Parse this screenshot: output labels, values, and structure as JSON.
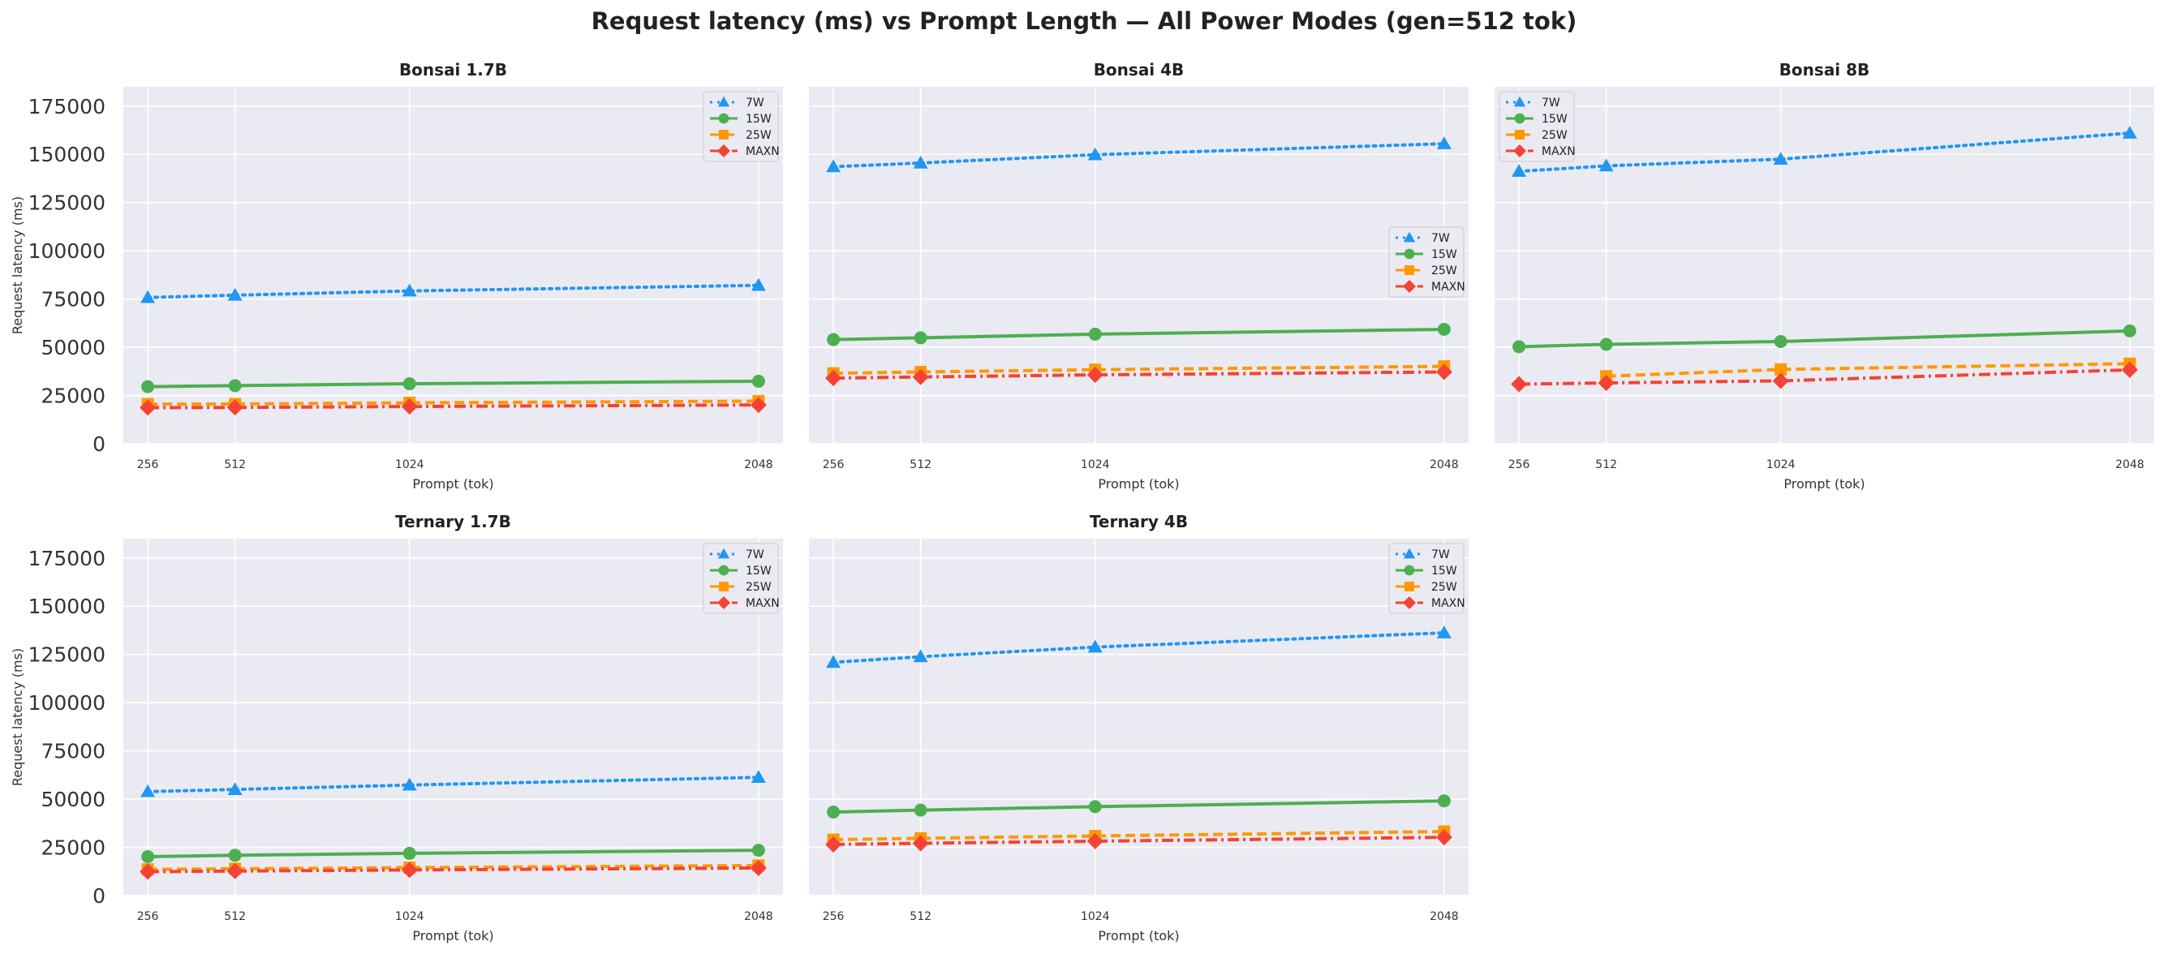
{
  "figure_title": "Request latency (ms) vs Prompt Length — All Power Modes (gen=512 tok)",
  "colors": {
    "7W": "#2196f3",
    "15W": "#4caf50",
    "25W": "#ff9800",
    "MAXN": "#f44336",
    "panel_bg": "#eaeaf2",
    "grid": "#ffffff"
  },
  "series_styles": {
    "7W": {
      "marker": "triangle",
      "dash": "dotted"
    },
    "15W": {
      "marker": "circle",
      "dash": "solid"
    },
    "25W": {
      "marker": "square",
      "dash": "dashed"
    },
    "MAXN": {
      "marker": "diamond",
      "dash": "dashdot"
    }
  },
  "chart_data": [
    {
      "type": "line",
      "title": "Bonsai 1.7B",
      "xlabel": "Prompt (tok)",
      "ylabel": "Request latency (ms)",
      "x": [
        256,
        512,
        1024,
        2048
      ],
      "xticks": [
        "256",
        "512",
        "1024",
        "2048"
      ],
      "yticks": [
        "0",
        "25000",
        "50000",
        "75000",
        "100000",
        "125000",
        "150000",
        "175000"
      ],
      "ylim": [
        0,
        185000
      ],
      "grid": true,
      "legend": "upper right",
      "series": [
        {
          "name": "7W",
          "values": [
            75800,
            77000,
            79200,
            82100
          ]
        },
        {
          "name": "15W",
          "values": [
            29600,
            30100,
            31100,
            32400
          ]
        },
        {
          "name": "25W",
          "values": [
            20500,
            20600,
            21200,
            22100
          ]
        },
        {
          "name": "MAXN",
          "values": [
            18700,
            18800,
            19300,
            20100
          ]
        }
      ]
    },
    {
      "type": "line",
      "title": "Bonsai 4B",
      "xlabel": "Prompt (tok)",
      "ylabel": "",
      "x": [
        256,
        512,
        1024,
        2048
      ],
      "xticks": [
        "256",
        "512",
        "1024",
        "2048"
      ],
      "yticks": [],
      "ylim": [
        0,
        185000
      ],
      "grid": true,
      "legend": "center right",
      "series": [
        {
          "name": "7W",
          "values": [
            143600,
            145500,
            149800,
            155500
          ]
        },
        {
          "name": "15W",
          "values": [
            54000,
            54900,
            56800,
            59300
          ]
        },
        {
          "name": "25W",
          "values": [
            36500,
            37200,
            38400,
            40100
          ]
        },
        {
          "name": "MAXN",
          "values": [
            34000,
            34600,
            35700,
            37200
          ]
        }
      ]
    },
    {
      "type": "line",
      "title": "Bonsai 8B",
      "xlabel": "Prompt (tok)",
      "ylabel": "",
      "x": [
        256,
        512,
        1024,
        2048
      ],
      "xticks": [
        "256",
        "512",
        "1024",
        "2048"
      ],
      "yticks": [],
      "ylim": [
        0,
        185000
      ],
      "grid": true,
      "legend": "upper left",
      "series": [
        {
          "name": "7W",
          "values": [
            141200,
            144000,
            147500,
            161000
          ]
        },
        {
          "name": "15W",
          "values": [
            50300,
            51500,
            53000,
            58500
          ]
        },
        {
          "name": "25W",
          "values": null,
          "note": ""
        },
        {
          "name": "MAXN",
          "values": [
            30900,
            31500,
            32600,
            38300
          ]
        }
      ]
    },
    {
      "type": "line",
      "title": "Ternary 1.7B",
      "xlabel": "Prompt (tok)",
      "ylabel": "Request latency (ms)",
      "x": [
        256,
        512,
        1024,
        2048
      ],
      "xticks": [
        "256",
        "512",
        "1024",
        "2048"
      ],
      "yticks": [
        "0",
        "25000",
        "50000",
        "75000",
        "100000",
        "125000",
        "150000",
        "175000"
      ],
      "ylim": [
        0,
        185000
      ],
      "grid": true,
      "legend": "upper right",
      "series": [
        {
          "name": "7W",
          "values": [
            53900,
            55000,
            57300,
            61300
          ]
        },
        {
          "name": "15W",
          "values": [
            20200,
            20900,
            21900,
            23500
          ]
        },
        {
          "name": "25W",
          "values": [
            13600,
            13900,
            14500,
            15600
          ]
        },
        {
          "name": "MAXN",
          "values": [
            12400,
            12700,
            13300,
            14300
          ]
        }
      ]
    },
    {
      "type": "line",
      "title": "Ternary 4B",
      "xlabel": "Prompt (tok)",
      "ylabel": "",
      "x": [
        256,
        512,
        1024,
        2048
      ],
      "xticks": [
        "256",
        "512",
        "1024",
        "2048"
      ],
      "yticks": [],
      "ylim": [
        0,
        185000
      ],
      "grid": true,
      "legend": "upper right",
      "series": [
        {
          "name": "7W",
          "values": [
            120900,
            123800,
            128800,
            136200
          ]
        },
        {
          "name": "15W",
          "values": [
            43300,
            44300,
            46100,
            49100
          ]
        },
        {
          "name": "25W",
          "values": [
            29000,
            29700,
            30900,
            33200
          ]
        },
        {
          "name": "MAXN",
          "values": [
            26500,
            27100,
            28200,
            30200
          ]
        }
      ]
    }
  ]
}
